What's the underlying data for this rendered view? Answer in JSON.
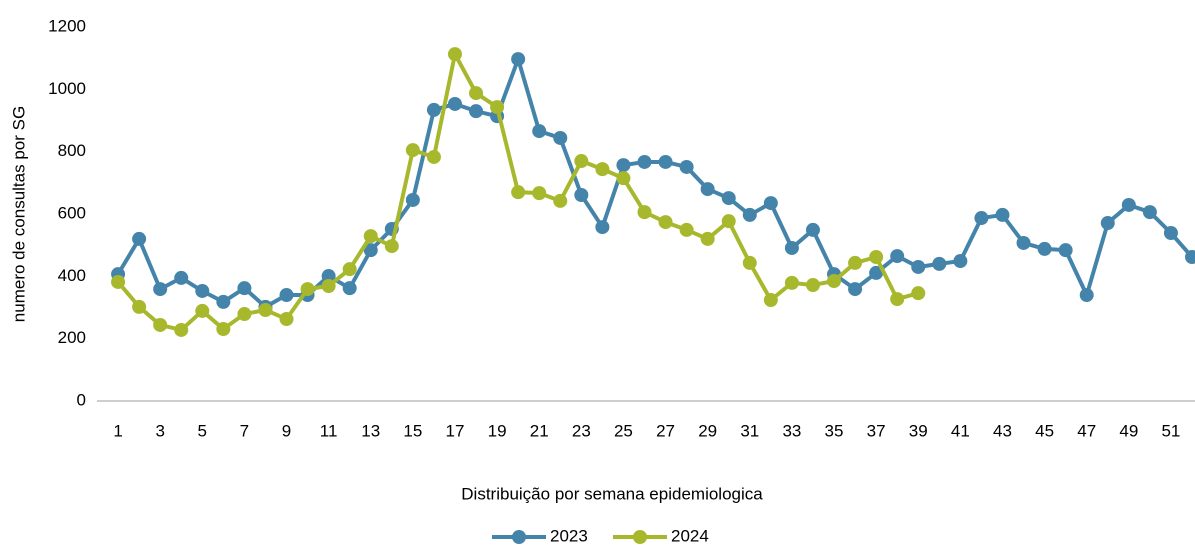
{
  "chart_data": {
    "type": "line",
    "xlabel": "Distribuição por semana epidemiologica",
    "ylabel": "numero de consultas por SG",
    "x": [
      1,
      2,
      3,
      4,
      5,
      6,
      7,
      8,
      9,
      10,
      11,
      12,
      13,
      14,
      15,
      16,
      17,
      18,
      19,
      20,
      21,
      22,
      23,
      24,
      25,
      26,
      27,
      28,
      29,
      30,
      31,
      32,
      33,
      34,
      35,
      36,
      37,
      38,
      39,
      40,
      41,
      42,
      43,
      44,
      45,
      46,
      47,
      48,
      49,
      50,
      51,
      52
    ],
    "xlim": [
      0,
      52
    ],
    "xticks": [
      1,
      3,
      5,
      7,
      9,
      11,
      13,
      15,
      17,
      19,
      21,
      23,
      25,
      27,
      29,
      31,
      33,
      35,
      37,
      39,
      41,
      43,
      45,
      47,
      49,
      51
    ],
    "ylim": [
      0,
      1200
    ],
    "yticks": [
      0,
      200,
      400,
      600,
      800,
      1000,
      1200
    ],
    "grid": false,
    "legend": "bottom",
    "series": [
      {
        "name": "2023",
        "color": "#4584aa",
        "values": [
          407,
          520,
          359,
          395,
          353,
          318,
          362,
          302,
          340,
          340,
          401,
          362,
          484,
          552,
          645,
          934,
          953,
          930,
          914,
          1097,
          866,
          844,
          661,
          558,
          757,
          767,
          767,
          751,
          680,
          651,
          597,
          635,
          491,
          549,
          407,
          359,
          411,
          465,
          430,
          440,
          449,
          587,
          597,
          507,
          488,
          484,
          340,
          571,
          629,
          606,
          539,
          462
        ]
      },
      {
        "name": "2024",
        "color": "#a8b82d",
        "values": [
          382,
          302,
          244,
          228,
          289,
          231,
          279,
          292,
          263,
          359,
          369,
          423,
          529,
          497,
          805,
          783,
          1113,
          988,
          943,
          670,
          667,
          642,
          770,
          744,
          715,
          606,
          574,
          549,
          520,
          577,
          443,
          324,
          379,
          372,
          385,
          443,
          462,
          327,
          346,
          null,
          null,
          null,
          null,
          null,
          null,
          null,
          null,
          null,
          null,
          null,
          null,
          null
        ]
      }
    ]
  }
}
